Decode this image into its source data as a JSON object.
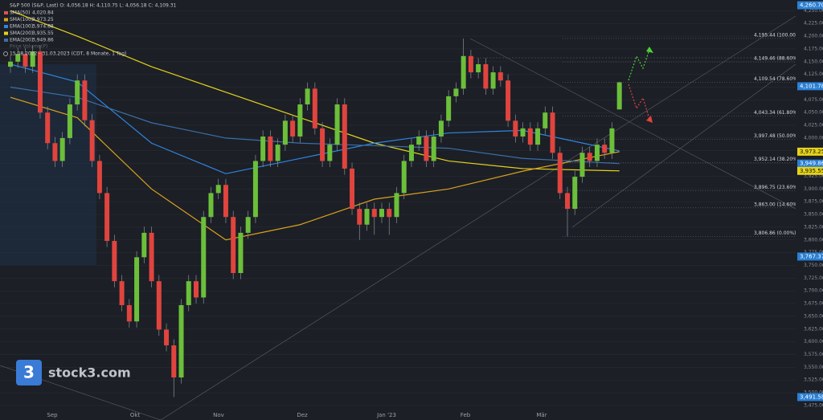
{
  "chart_data": {
    "type": "candlestick",
    "header": "S&P 500 (S&P, Last)  O: 4,056.18  H: 4,110.75  L: 4,056.18  C: 4,109.31",
    "period": "15.08.2022 - 31.03.2023  (CDT, 8 Monate, 1 Tag)",
    "volume_label": "Price Volume(P)",
    "legend": [
      {
        "name": "SMA(50)",
        "label": "4,020.84",
        "color": "#e0524f"
      },
      {
        "name": "SMA(100)",
        "label": "3,973.25",
        "color": "#d9a21c"
      },
      {
        "name": "EMA(100)",
        "label": "3,974.88",
        "color": "#2f86e0"
      },
      {
        "name": "SMA(200)",
        "label": "3,935.55",
        "color": "#e6d31a"
      },
      {
        "name": "EMA(200)",
        "label": "3,949.86",
        "color": "#3a6fa8"
      }
    ],
    "brand": "stock3.com",
    "months": [
      "Sep",
      "Okt",
      "Nov",
      "Dez",
      "Jan '23",
      "Feb",
      "Mär"
    ],
    "up_color": "#6cbf3a",
    "down_color": "#e0443e",
    "open": [
      4140,
      4150,
      4165,
      4140,
      4170,
      4050,
      3990,
      3955,
      4000,
      4066,
      4113,
      4035,
      3955,
      3892,
      3798,
      3719,
      3672,
      3640,
      3766,
      3814,
      3719,
      3624,
      3593,
      3530,
      3672,
      3719,
      3687,
      3845,
      3892,
      3908,
      3845,
      3735,
      3814,
      3845,
      3955,
      4003,
      3955,
      3987,
      4034,
      4003,
      4066,
      4097,
      4019,
      3955,
      3987,
      4066,
      3940,
      3861,
      3830,
      3861,
      3845,
      3861,
      3845,
      3892,
      3955,
      3987,
      4003,
      3955,
      4003,
      4034,
      4082,
      4097,
      4161,
      4129,
      4145,
      4097,
      4129,
      4113,
      4034,
      4003,
      4019,
      3987,
      4019,
      4050,
      3971,
      3892,
      3861,
      3924,
      3971,
      3955,
      3987,
      3971,
      4056.18
    ],
    "high": [
      4162,
      4177,
      4177,
      4182,
      4182,
      4062,
      4002,
      4012,
      4078,
      4125,
      4125,
      4047,
      3967,
      3904,
      3810,
      3731,
      3684,
      3778,
      3826,
      3826,
      3731,
      3636,
      3605,
      3684,
      3731,
      3731,
      3857,
      3904,
      3920,
      3920,
      3857,
      3826,
      3857,
      3967,
      4015,
      4015,
      3999,
      4046,
      4046,
      4078,
      4109,
      4109,
      4031,
      3999,
      4078,
      4078,
      3952,
      3873,
      3873,
      3873,
      3873,
      3873,
      3904,
      3967,
      3999,
      4015,
      4015,
      4015,
      4046,
      4094,
      4109,
      4195.44,
      4173,
      4157,
      4157,
      4141,
      4141,
      4125,
      4046,
      4031,
      4031,
      4031,
      4062,
      4062,
      3983,
      3904,
      3936,
      3983,
      3983,
      3999,
      3999,
      4031,
      4110.75
    ],
    "low": [
      4128,
      4138,
      4128,
      4128,
      4038,
      3978,
      3943,
      3943,
      3988,
      4054,
      4023,
      3943,
      3880,
      3786,
      3707,
      3660,
      3628,
      3628,
      3754,
      3707,
      3612,
      3581,
      3491.58,
      3518,
      3660,
      3675,
      3675,
      3833,
      3880,
      3833,
      3723,
      3723,
      3802,
      3833,
      3943,
      3943,
      3943,
      3975,
      3991,
      3991,
      4054,
      4007,
      3943,
      3943,
      3975,
      3928,
      3849,
      3800,
      3818,
      3810,
      3833,
      3810,
      3833,
      3880,
      3943,
      3975,
      3943,
      3943,
      3991,
      4022,
      4070,
      4085,
      4117,
      4117,
      4085,
      4085,
      4101,
      4022,
      3991,
      3991,
      3975,
      3975,
      4007,
      3959,
      3880,
      3806.86,
      3849,
      3912,
      3943,
      3943,
      3959,
      3959,
      4056.18
    ],
    "close": [
      4150,
      4165,
      4140,
      4170,
      4050,
      3990,
      3955,
      4000,
      4066,
      4113,
      4035,
      3955,
      3892,
      3798,
      3719,
      3672,
      3640,
      3766,
      3814,
      3719,
      3624,
      3593,
      3530,
      3672,
      3719,
      3687,
      3845,
      3892,
      3908,
      3845,
      3735,
      3814,
      3845,
      3955,
      4003,
      3955,
      3987,
      4034,
      4003,
      4066,
      4097,
      4019,
      3955,
      3987,
      4066,
      3940,
      3861,
      3830,
      3861,
      3845,
      3861,
      3845,
      3892,
      3955,
      3987,
      4003,
      3955,
      4003,
      4034,
      4082,
      4097,
      4161,
      4129,
      4145,
      4097,
      4129,
      4113,
      4034,
      4003,
      4019,
      3987,
      4019,
      4050,
      3971,
      3892,
      3861,
      3924,
      3971,
      3955,
      3987,
      3971,
      4019,
      4109.31
    ],
    "series": [
      {
        "name": "SMA(200)",
        "color": "#e6d31a",
        "x": [
          0,
          9,
          19,
          29,
          39,
          49,
          59,
          69,
          82
        ],
        "values": [
          4250,
          4200,
          4140,
          4090,
          4040,
          3990,
          3955,
          3940,
          3935.55
        ]
      },
      {
        "name": "SMA(100)",
        "color": "#d9a21c",
        "x": [
          0,
          9,
          19,
          29,
          39,
          49,
          59,
          69,
          82
        ],
        "values": [
          4080,
          4040,
          3900,
          3800,
          3830,
          3880,
          3900,
          3935,
          3973.25
        ]
      },
      {
        "name": "EMA(100)",
        "color": "#2f86e0",
        "x": [
          0,
          9,
          19,
          29,
          39,
          49,
          59,
          69,
          82
        ],
        "values": [
          4145,
          4110,
          3990,
          3930,
          3960,
          3990,
          4010,
          4015,
          3974.88
        ]
      },
      {
        "name": "EMA(200)",
        "color": "#3a6fa8",
        "x": [
          0,
          9,
          19,
          29,
          39,
          49,
          59,
          69,
          82
        ],
        "values": [
          4100,
          4080,
          4030,
          4000,
          3990,
          3985,
          3980,
          3960,
          3949.86
        ]
      }
    ],
    "fib_levels": [
      {
        "value": 4195.44,
        "label": "4,195.44 (100.00%)"
      },
      {
        "value": 4149.46,
        "label": "4,149.46 (88.60%)"
      },
      {
        "value": 4109.54,
        "label": "4,109.54 (78.60%)"
      },
      {
        "value": 4043.34,
        "label": "4,043.34 (61.80%)"
      },
      {
        "value": 3997.48,
        "label": "3,997.48 (50.00%)"
      },
      {
        "value": 3952.14,
        "label": "3,952.14 (38.20%)"
      },
      {
        "value": 3896.75,
        "label": "3,896.75 (23.60%)"
      },
      {
        "value": 3863.0,
        "label": "3,863.00 (14.60%)"
      },
      {
        "value": 3806.86,
        "label": "3,806.86 (0.00%)"
      }
    ],
    "price_tags": [
      {
        "value": 4260.7,
        "label": "4,260.70",
        "color": "#2a7fd4"
      },
      {
        "value": 4101.78,
        "label": "4,101.78",
        "color": "#2a7fd4"
      },
      {
        "value": 3973.25,
        "label": "3,973.25",
        "color": "#e6d31a"
      },
      {
        "value": 3949.86,
        "label": "3,949.86",
        "color": "#2a7fd4"
      },
      {
        "value": 3935.55,
        "label": "3,935.55",
        "color": "#e6d31a"
      },
      {
        "value": 3767.37,
        "label": "3,767.37",
        "color": "#2a7fd4"
      },
      {
        "value": 3491.58,
        "label": "3,491.58",
        "color": "#2a7fd4"
      }
    ],
    "ylim": [
      3467,
      4271
    ],
    "yticks": [
      {
        "value": 4250,
        "label": "4,250.00"
      },
      {
        "value": 4225,
        "label": "4,225.00"
      },
      {
        "value": 4200,
        "label": "4,200.00"
      },
      {
        "value": 4175,
        "label": "4,175.00"
      },
      {
        "value": 4150,
        "label": "4,150.00"
      },
      {
        "value": 4125,
        "label": "4,125.00"
      },
      {
        "value": 4100,
        "label": "4,100.00"
      },
      {
        "value": 4075,
        "label": "4,075.00"
      },
      {
        "value": 4050,
        "label": "4,050.00"
      },
      {
        "value": 4025,
        "label": "4,025.00"
      },
      {
        "value": 4000,
        "label": "4,000.00"
      },
      {
        "value": 3975,
        "label": "3,975.00"
      },
      {
        "value": 3950,
        "label": "3,950.00"
      },
      {
        "value": 3925,
        "label": "3,925.00"
      },
      {
        "value": 3900,
        "label": "3,900.00"
      },
      {
        "value": 3875,
        "label": "3,875.00"
      },
      {
        "value": 3850,
        "label": "3,850.00"
      },
      {
        "value": 3825,
        "label": "3,825.00"
      },
      {
        "value": 3800,
        "label": "3,800.00"
      },
      {
        "value": 3775,
        "label": "3,775.00"
      },
      {
        "value": 3750,
        "label": "3,750.00"
      },
      {
        "value": 3725,
        "label": "3,725.00"
      },
      {
        "value": 3700,
        "label": "3,700.00"
      },
      {
        "value": 3675,
        "label": "3,675.00"
      },
      {
        "value": 3650,
        "label": "3,650.00"
      },
      {
        "value": 3625,
        "label": "3,625.00"
      },
      {
        "value": 3600,
        "label": "3,600.00"
      },
      {
        "value": 3575,
        "label": "3,575.00"
      },
      {
        "value": 3550,
        "label": "3,550.00"
      },
      {
        "value": 3525,
        "label": "3,525.00"
      },
      {
        "value": 3500,
        "label": "3,500.00"
      },
      {
        "value": 3475,
        "label": "3,475.00"
      }
    ],
    "grid": true
  }
}
